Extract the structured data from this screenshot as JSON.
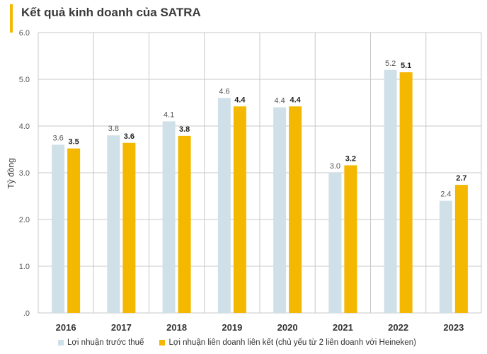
{
  "title": "Kết quả kinh doanh của SATRA",
  "colors": {
    "accent": "#f5b800",
    "series1": "#cfe0e8",
    "series2": "#f5b800",
    "grid": "#c8c8c8"
  },
  "chart_data": {
    "type": "bar",
    "title": "Kết quả kinh doanh của SATRA",
    "xlabel": "",
    "ylabel": "Tỷ đồng",
    "ylim": [
      0,
      6
    ],
    "yticks": [
      ".0",
      "1.0",
      "2.0",
      "3.0",
      "4.0",
      "5.0",
      "6.0"
    ],
    "categories": [
      "2016",
      "2017",
      "2018",
      "2019",
      "2020",
      "2021",
      "2022",
      "2023"
    ],
    "series": [
      {
        "name": "Lợi nhuận trước thuế",
        "values": [
          3.6,
          3.8,
          4.1,
          4.6,
          4.4,
          3.0,
          5.2,
          2.4
        ],
        "labels": [
          "3.6",
          "3.8",
          "4.1",
          "4.6",
          "4.4",
          "3.0",
          "5.2",
          "2.4"
        ],
        "color": "#cfe0e8",
        "bold": false
      },
      {
        "name": "Lợi nhuận liên doanh liên kết (chủ yếu từ 2 liên doanh với Heineken)",
        "values": [
          3.52,
          3.64,
          3.79,
          4.42,
          4.42,
          3.16,
          5.15,
          2.74
        ],
        "labels": [
          "3.5",
          "3.6",
          "3.8",
          "4.4",
          "4.4",
          "3.2",
          "5.1",
          "2.7"
        ],
        "color": "#f5b800",
        "bold": true
      }
    ],
    "legend_position": "bottom",
    "grid": true
  }
}
